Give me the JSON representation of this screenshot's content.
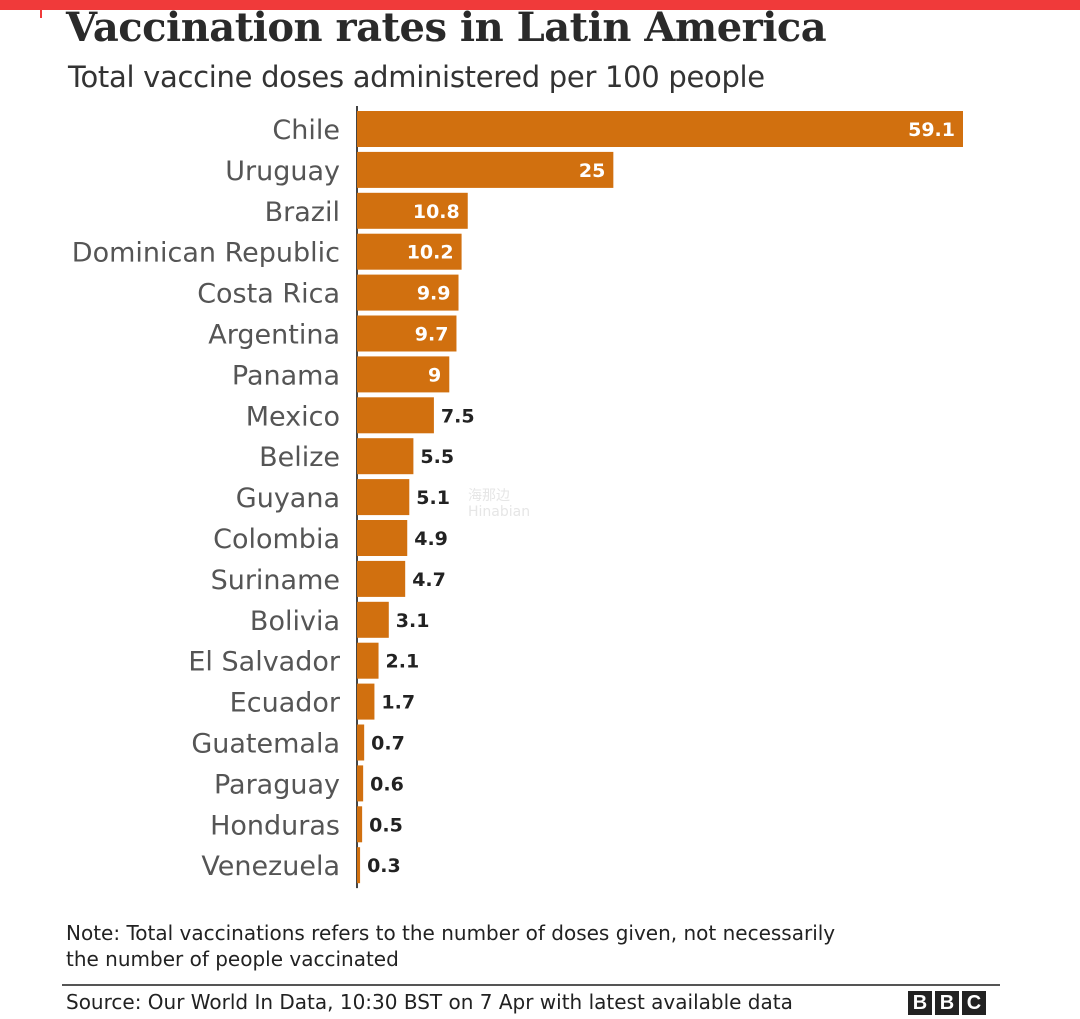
{
  "header": {
    "title": "Vaccination rates in Latin America",
    "subtitle": "Total vaccine doses administered per 100 people"
  },
  "chart_data": {
    "type": "bar",
    "orientation": "horizontal",
    "title": "Vaccination rates in Latin America",
    "subtitle": "Total vaccine doses administered per 100 people",
    "categories": [
      "Chile",
      "Uruguay",
      "Brazil",
      "Dominican Republic",
      "Costa Rica",
      "Argentina",
      "Panama",
      "Mexico",
      "Belize",
      "Guyana",
      "Colombia",
      "Suriname",
      "Bolivia",
      "El Salvador",
      "Ecuador",
      "Guatemala",
      "Paraguay",
      "Honduras",
      "Venezuela"
    ],
    "values": [
      59.1,
      25,
      10.8,
      10.2,
      9.9,
      9.7,
      9,
      7.5,
      5.5,
      5.1,
      4.9,
      4.7,
      3.1,
      2.1,
      1.7,
      0.7,
      0.6,
      0.5,
      0.3
    ],
    "value_labels": [
      "59.1",
      "25",
      "10.8",
      "10.2",
      "9.9",
      "9.7",
      "9",
      "7.5",
      "5.5",
      "5.1",
      "4.9",
      "4.7",
      "3.1",
      "2.1",
      "1.7",
      "0.7",
      "0.6",
      "0.5",
      "0.3"
    ],
    "xlim": [
      0,
      59.1
    ],
    "grid": false,
    "legend": "none",
    "colors": {
      "bar": "#d1700f",
      "label_inside": "#ffffff",
      "label_outside": "#222222",
      "category": "#555555",
      "axis": "#444444"
    }
  },
  "footer": {
    "note_line1": "Note: Total vaccinations refers to the number of doses given, not necessarily",
    "note_line2": "the number of people vaccinated",
    "source": "Source: Our World In Data, 10:30 BST on 7 Apr with latest available data",
    "logo_letters": [
      "B",
      "B",
      "C"
    ]
  },
  "watermark": {
    "line1": "海那边",
    "line2": "Hinabian"
  }
}
